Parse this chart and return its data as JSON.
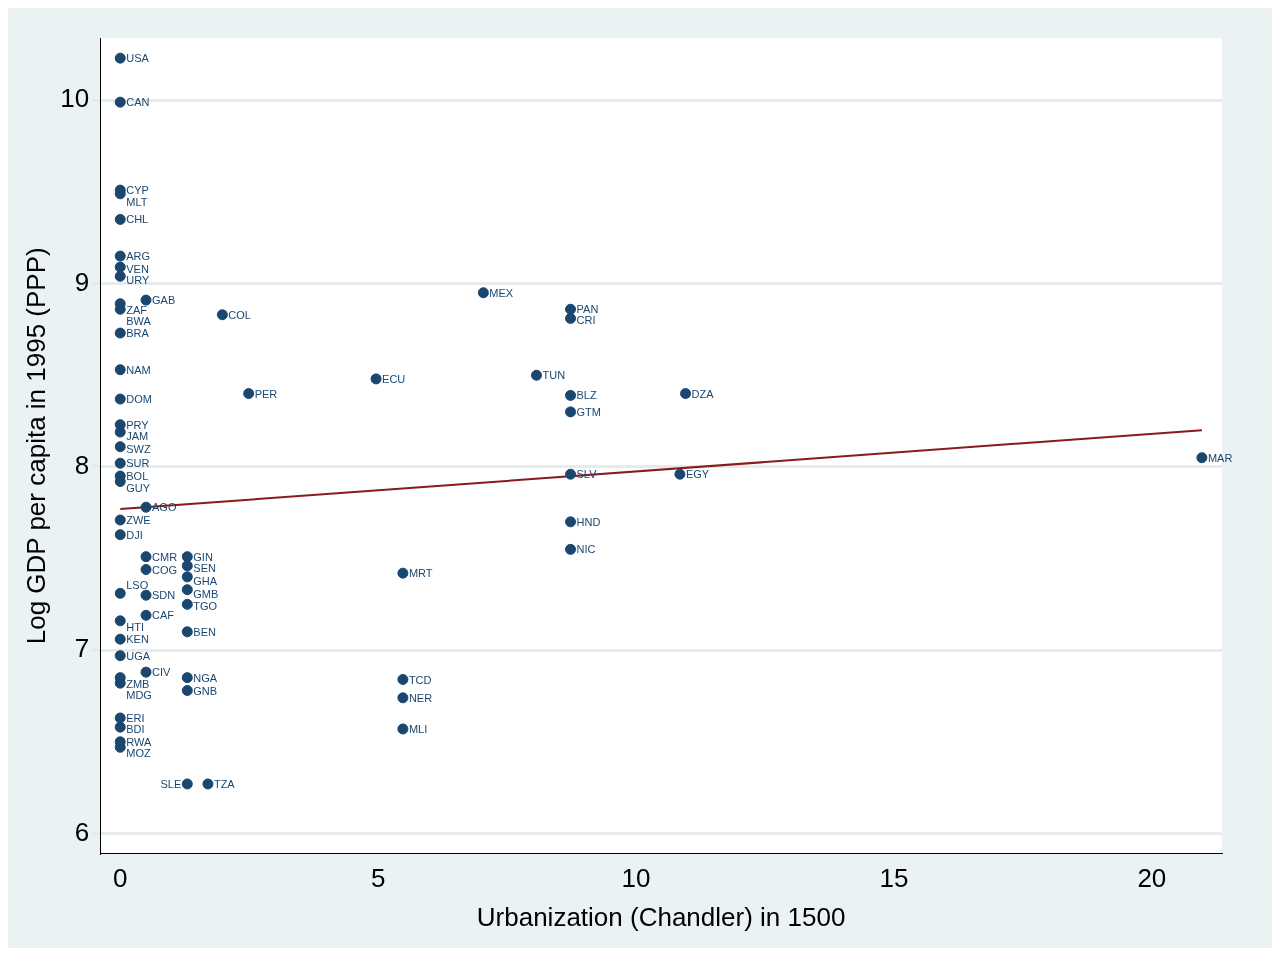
{
  "chart_data": {
    "type": "scatter",
    "xlabel": "Urbanization (Chandler) in 1500",
    "ylabel": "Log GDP per capita in 1995 (PPP)",
    "xlim": [
      -0.39,
      21.36
    ],
    "ylim": [
      5.89,
      10.34
    ],
    "xticks": [
      0,
      5,
      10,
      15,
      20
    ],
    "yticks": [
      6,
      7,
      8,
      9,
      10
    ],
    "grid": "y",
    "legend": false,
    "marker": "circle",
    "series": [
      {
        "type": "scatter",
        "color": "#1a476f",
        "x": [
          0,
          0,
          0,
          0,
          0,
          0,
          0,
          0,
          0,
          0,
          0.5,
          1.98,
          0,
          0,
          0,
          0,
          0,
          0,
          0,
          0,
          0,
          0.5,
          0,
          0,
          0.5,
          1.3,
          0.5,
          1.3,
          1.3,
          0,
          0.5,
          1.3,
          1.3,
          0.5,
          0,
          1.3,
          0,
          0,
          0.5,
          0,
          0,
          1.3,
          1.3,
          0,
          0,
          0,
          0,
          1.3,
          1.7,
          2.49,
          4.96,
          7.04,
          8.73,
          8.73,
          8.07,
          8.73,
          8.73,
          10.96,
          8.73,
          10.85,
          8.73,
          8.73,
          5.48,
          5.48,
          5.48,
          5.48,
          20.97
        ],
        "values": [
          10.23,
          9.99,
          9.51,
          9.49,
          9.35,
          9.15,
          9.09,
          9.04,
          8.89,
          8.86,
          8.91,
          8.83,
          8.73,
          8.53,
          8.37,
          8.23,
          8.19,
          8.11,
          8.02,
          7.95,
          7.92,
          7.78,
          7.71,
          7.63,
          7.51,
          7.51,
          7.44,
          7.46,
          7.4,
          7.31,
          7.3,
          7.33,
          7.25,
          7.19,
          7.16,
          7.1,
          7.06,
          6.97,
          6.88,
          6.85,
          6.82,
          6.85,
          6.78,
          6.63,
          6.58,
          6.5,
          6.47,
          6.27,
          6.27,
          8.4,
          8.48,
          8.95,
          8.86,
          8.81,
          8.5,
          8.39,
          8.3,
          8.4,
          7.96,
          7.96,
          7.7,
          7.55,
          7.42,
          6.84,
          6.74,
          6.57,
          8.05
        ],
        "value_labels": [
          "USA",
          "CAN",
          "CYP",
          "MLT",
          "CHL",
          "ARG",
          "VEN",
          "URY",
          "ZAF",
          "BWA",
          "GAB",
          "COL",
          "BRA",
          "NAM",
          "DOM",
          "PRY",
          "JAM",
          "SWZ",
          "SUR",
          "BOL",
          "GUY",
          "AGO",
          "ZWE",
          "DJI",
          "CMR",
          "GIN",
          "COG",
          "SEN",
          "GHA",
          "LSO",
          "SDN",
          "GMB",
          "TGO",
          "CAF",
          "HTI",
          "BEN",
          "KEN",
          "UGA",
          "CIV",
          "ZMB",
          "MDG",
          "NGA",
          "GNB",
          "ERI",
          "BDI",
          "RWA",
          "MOZ",
          "SLE",
          "TZA",
          "PER",
          "ECU",
          "MEX",
          "PAN",
          "CRI",
          "TUN",
          "BLZ",
          "GTM",
          "DZA",
          "SLV",
          "EGY",
          "HND",
          "NIC",
          "MRT",
          "TCD",
          "NER",
          "MLI",
          "MAR"
        ]
      },
      {
        "type": "line",
        "color": "#8b1a1a",
        "marker": "none",
        "x": [
          0,
          20.97
        ],
        "values": [
          7.77,
          8.2
        ]
      }
    ]
  }
}
